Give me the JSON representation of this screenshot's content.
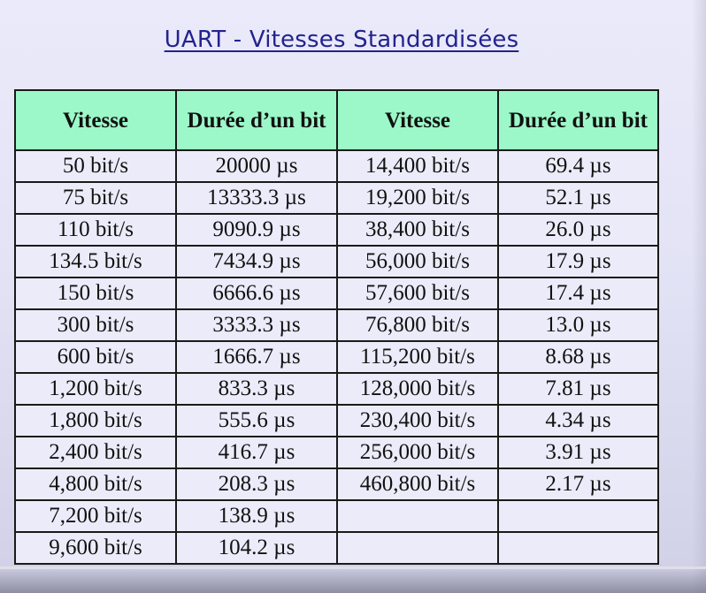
{
  "title": "UART - Vitesses Standardisées",
  "table": {
    "headers": [
      "Vitesse",
      "Durée d’un bit",
      "Vitesse",
      "Durée d’un bit"
    ],
    "rows": [
      [
        "50 bit/s",
        "20000 µs",
        "14,400 bit/s",
        "69.4 µs"
      ],
      [
        "75 bit/s",
        "13333.3 µs",
        "19,200 bit/s",
        "52.1 µs"
      ],
      [
        "110 bit/s",
        "9090.9 µs",
        "38,400 bit/s",
        "26.0 µs"
      ],
      [
        "134.5 bit/s",
        "7434.9 µs",
        "56,000 bit/s",
        "17.9 µs"
      ],
      [
        "150 bit/s",
        "6666.6 µs",
        "57,600 bit/s",
        "17.4 µs"
      ],
      [
        "300 bit/s",
        "3333.3 µs",
        "76,800 bit/s",
        "13.0 µs"
      ],
      [
        "600 bit/s",
        "1666.7 µs",
        "115,200 bit/s",
        "8.68 µs"
      ],
      [
        "1,200 bit/s",
        "833.3 µs",
        "128,000 bit/s",
        "7.81 µs"
      ],
      [
        "1,800 bit/s",
        "555.6 µs",
        "230,400 bit/s",
        "4.34 µs"
      ],
      [
        "2,400 bit/s",
        "416.7 µs",
        "256,000 bit/s",
        "3.91 µs"
      ],
      [
        "4,800 bit/s",
        "208.3 µs",
        "460,800 bit/s",
        "2.17 µs"
      ],
      [
        "7,200 bit/s",
        "138.9 µs",
        "",
        ""
      ],
      [
        "9,600 bit/s",
        "104.2 µs",
        "",
        ""
      ]
    ]
  },
  "colors": {
    "title": "#23238e",
    "header_fill": "#9cf8c8",
    "cell_fill": "#ecebf9",
    "border": "#1a1a1a"
  }
}
